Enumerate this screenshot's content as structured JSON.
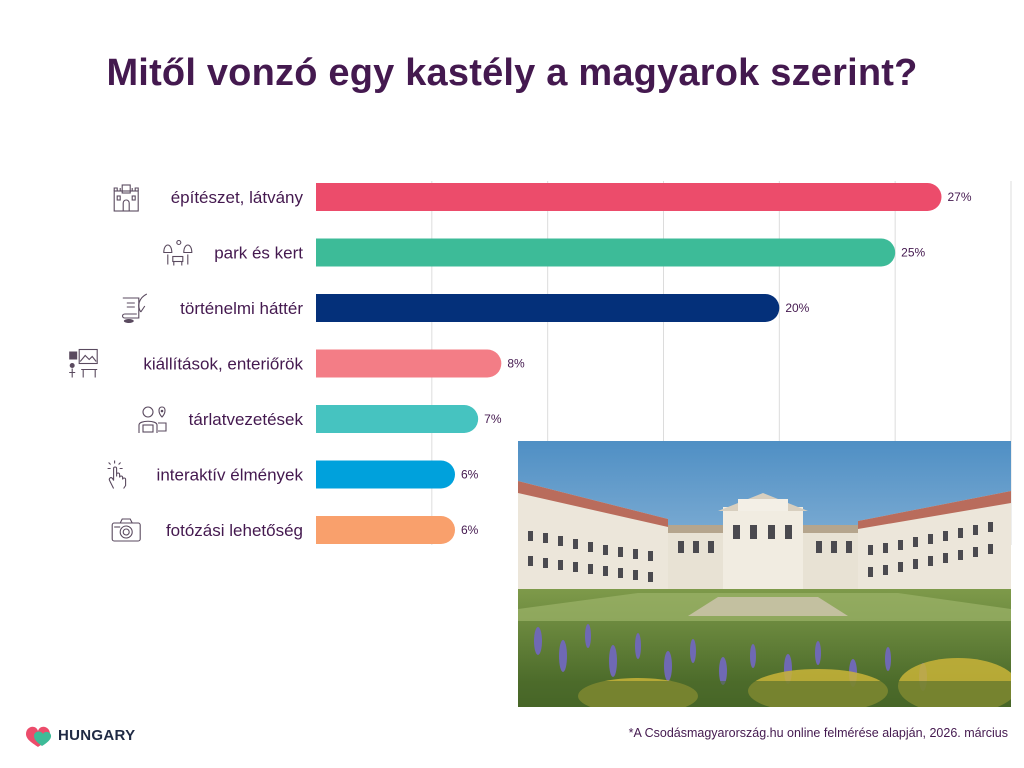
{
  "title": "Mitől vonzó egy kastély a magyarok szerint?",
  "footnote": "*A Csodásmagyarország.hu online felmérése alapján, 2026. március",
  "logo": {
    "text": "HUNGARY",
    "icon": "hungary-heart-logo"
  },
  "photo": {
    "subject": "castle-with-garden"
  },
  "chart_data": {
    "type": "bar",
    "orientation": "horizontal",
    "categories": [
      "építészet, látvány",
      "park és kert",
      "történelmi háttér",
      "kiállítások, enteriőrök",
      "tárlatvezetések",
      "interaktív élmények",
      "fotózási lehetőség"
    ],
    "values": [
      27,
      25,
      20,
      8,
      7,
      6,
      6
    ],
    "value_labels": [
      "27%",
      "25%",
      "20%",
      "8%",
      "7%",
      "6%",
      "6%"
    ],
    "colors": [
      "#ec4c6b",
      "#3dbb98",
      "#04307a",
      "#f37d86",
      "#46c3c0",
      "#00a1dc",
      "#f9a06c"
    ],
    "icons": [
      "castle-icon",
      "park-bench-icon",
      "scroll-quill-icon",
      "gallery-icon",
      "guide-icon",
      "tap-hand-icon",
      "camera-icon"
    ],
    "xlim": [
      0,
      30
    ],
    "grid": true,
    "gridlines": [
      5,
      10,
      15,
      20,
      25,
      30
    ],
    "legend": "none"
  }
}
